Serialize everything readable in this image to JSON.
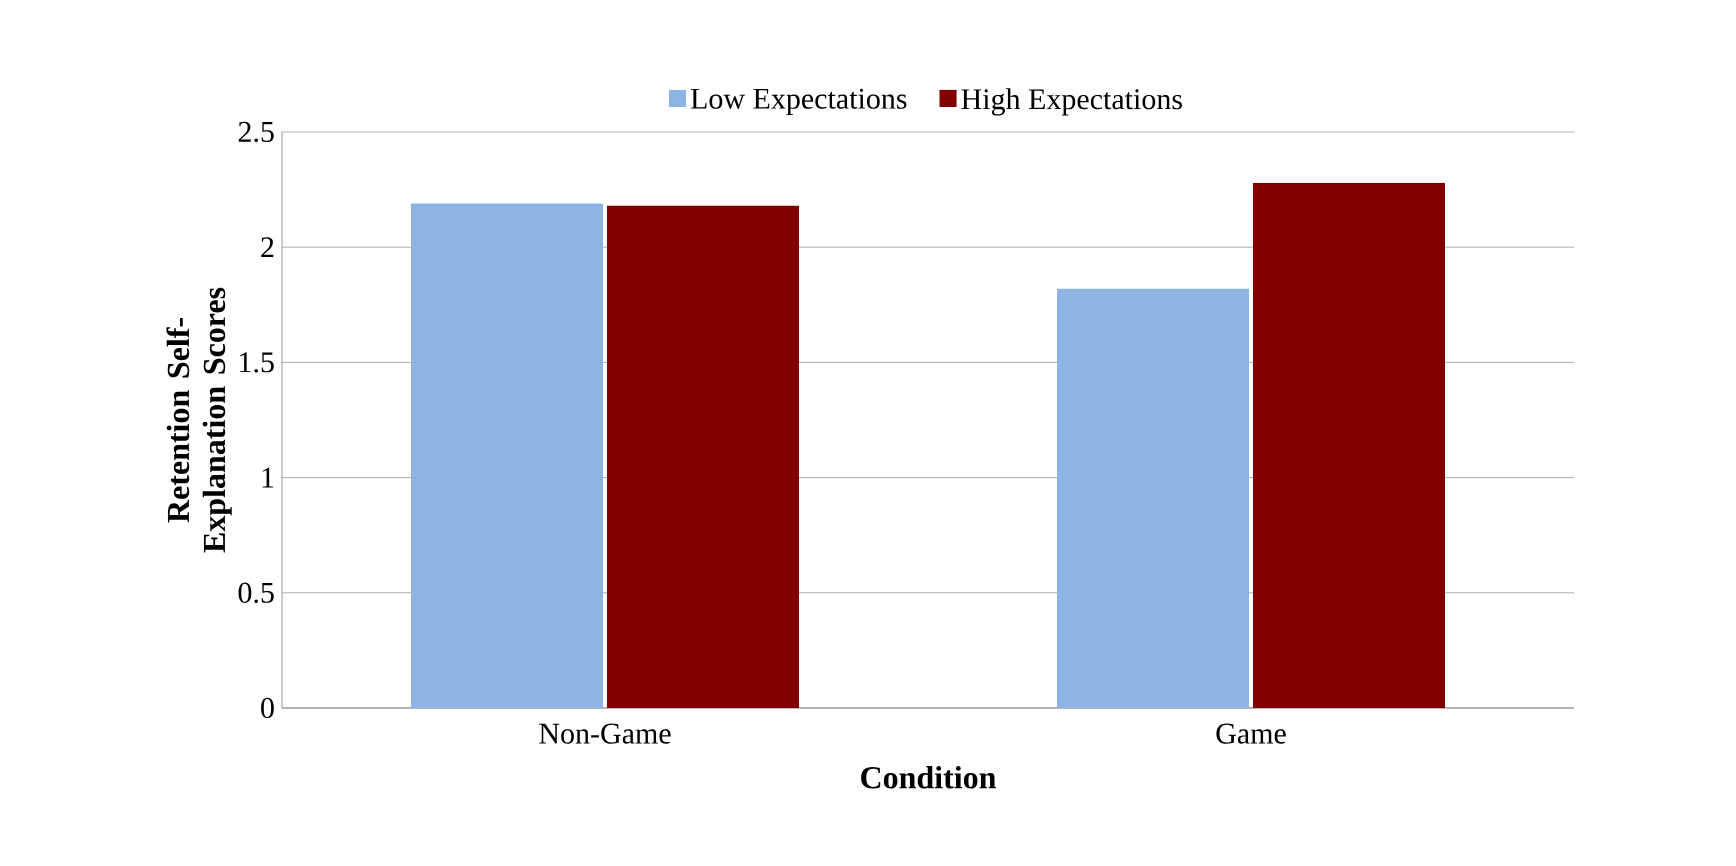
{
  "chart_data": {
    "type": "bar",
    "xlabel": "Condition",
    "ylabel": "Retention Self-Explanation Scores",
    "categories": [
      "Non-Game",
      "Game"
    ],
    "series": [
      {
        "name": "Low Expectations",
        "color": "#8eb4e3",
        "values": [
          2.19,
          1.82
        ]
      },
      {
        "name": "High Expectations",
        "color": "#800000",
        "values": [
          2.18,
          2.28
        ]
      }
    ],
    "ylim": [
      0,
      2.5
    ],
    "yticks": [
      0,
      0.5,
      1,
      1.5,
      2,
      2.5
    ],
    "grid": "y",
    "legend": "top"
  }
}
